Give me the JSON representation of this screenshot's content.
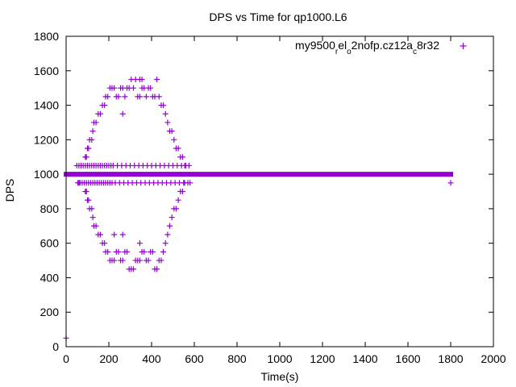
{
  "chart_data": {
    "type": "scatter",
    "title": "DPS vs Time for qp1000.L6",
    "xlabel": "Time(s)",
    "ylabel": "DPS",
    "xlim": [
      0,
      2000
    ],
    "ylim": [
      0,
      1800
    ],
    "xticks": [
      0,
      200,
      400,
      600,
      800,
      1000,
      1200,
      1400,
      1600,
      1800,
      2000
    ],
    "yticks": [
      0,
      200,
      400,
      600,
      800,
      1000,
      1200,
      1400,
      1600,
      1800
    ],
    "legend_position": "top-right",
    "grid": false,
    "series": [
      {
        "legend_parts": [
          {
            "text": "my9500",
            "sub": false
          },
          {
            "text": "r",
            "sub": true
          },
          {
            "text": "el",
            "sub": false
          },
          {
            "text": "o",
            "sub": true
          },
          {
            "text": "2nofp.cz12a",
            "sub": false
          },
          {
            "text": "c",
            "sub": true
          },
          {
            "text": "8r32",
            "sub": false
          }
        ],
        "color": "#9400d3",
        "marker": "plus",
        "baseline": {
          "y": 1000,
          "x_from": 0,
          "x_to": 1800
        },
        "points": [
          [
            0,
            50
          ],
          [
            1800,
            950
          ],
          [
            50,
            1050
          ],
          [
            55,
            950
          ],
          [
            60,
            1050
          ],
          [
            65,
            950
          ],
          [
            70,
            1050
          ],
          [
            75,
            950
          ],
          [
            80,
            1050
          ],
          [
            85,
            950
          ],
          [
            90,
            1050
          ],
          [
            60,
            950
          ],
          [
            70,
            1050
          ],
          [
            95,
            950
          ],
          [
            100,
            1050
          ],
          [
            105,
            950
          ],
          [
            110,
            1050
          ],
          [
            115,
            950
          ],
          [
            120,
            1050
          ],
          [
            125,
            950
          ],
          [
            130,
            1050
          ],
          [
            135,
            950
          ],
          [
            140,
            1050
          ],
          [
            145,
            950
          ],
          [
            150,
            1050
          ],
          [
            155,
            950
          ],
          [
            160,
            1050
          ],
          [
            165,
            950
          ],
          [
            170,
            1050
          ],
          [
            175,
            950
          ],
          [
            180,
            1050
          ],
          [
            185,
            950
          ],
          [
            190,
            1050
          ],
          [
            195,
            950
          ],
          [
            200,
            1050
          ],
          [
            205,
            950
          ],
          [
            210,
            1050
          ],
          [
            215,
            950
          ],
          [
            220,
            1050
          ],
          [
            230,
            950
          ],
          [
            240,
            1050
          ],
          [
            250,
            950
          ],
          [
            260,
            1050
          ],
          [
            270,
            950
          ],
          [
            280,
            1050
          ],
          [
            290,
            950
          ],
          [
            300,
            1050
          ],
          [
            310,
            950
          ],
          [
            320,
            1050
          ],
          [
            330,
            950
          ],
          [
            340,
            1050
          ],
          [
            350,
            950
          ],
          [
            360,
            1050
          ],
          [
            370,
            950
          ],
          [
            380,
            1050
          ],
          [
            390,
            950
          ],
          [
            400,
            1050
          ],
          [
            410,
            950
          ],
          [
            420,
            1050
          ],
          [
            430,
            950
          ],
          [
            440,
            1050
          ],
          [
            450,
            950
          ],
          [
            460,
            1050
          ],
          [
            470,
            950
          ],
          [
            480,
            1050
          ],
          [
            490,
            950
          ],
          [
            500,
            1050
          ],
          [
            510,
            950
          ],
          [
            520,
            1050
          ],
          [
            530,
            950
          ],
          [
            540,
            1050
          ],
          [
            550,
            950
          ],
          [
            560,
            1050
          ],
          [
            570,
            950
          ],
          [
            575,
            1050
          ],
          [
            580,
            950
          ],
          [
            90,
            1100
          ],
          [
            95,
            1100
          ],
          [
            100,
            1150
          ],
          [
            105,
            1150
          ],
          [
            110,
            1200
          ],
          [
            120,
            1200
          ],
          [
            125,
            1250
          ],
          [
            130,
            1300
          ],
          [
            140,
            1300
          ],
          [
            150,
            1350
          ],
          [
            160,
            1350
          ],
          [
            170,
            1400
          ],
          [
            180,
            1400
          ],
          [
            185,
            1450
          ],
          [
            195,
            1450
          ],
          [
            205,
            1500
          ],
          [
            215,
            1500
          ],
          [
            225,
            1500
          ],
          [
            235,
            1450
          ],
          [
            245,
            1450
          ],
          [
            255,
            1500
          ],
          [
            265,
            1500
          ],
          [
            275,
            1450
          ],
          [
            285,
            1500
          ],
          [
            295,
            1500
          ],
          [
            305,
            1550
          ],
          [
            315,
            1500
          ],
          [
            325,
            1550
          ],
          [
            335,
            1450
          ],
          [
            345,
            1450
          ],
          [
            355,
            1500
          ],
          [
            365,
            1500
          ],
          [
            375,
            1450
          ],
          [
            385,
            1500
          ],
          [
            395,
            1500
          ],
          [
            405,
            1450
          ],
          [
            415,
            1450
          ],
          [
            425,
            1550
          ],
          [
            435,
            1450
          ],
          [
            445,
            1400
          ],
          [
            455,
            1400
          ],
          [
            465,
            1350
          ],
          [
            475,
            1300
          ],
          [
            485,
            1250
          ],
          [
            495,
            1250
          ],
          [
            505,
            1200
          ],
          [
            515,
            1150
          ],
          [
            525,
            1150
          ],
          [
            535,
            1100
          ],
          [
            545,
            1100
          ],
          [
            555,
            1050
          ],
          [
            265,
            1350
          ],
          [
            345,
            1550
          ],
          [
            355,
            1550
          ],
          [
            90,
            900
          ],
          [
            95,
            900
          ],
          [
            100,
            850
          ],
          [
            105,
            850
          ],
          [
            110,
            800
          ],
          [
            120,
            800
          ],
          [
            125,
            750
          ],
          [
            130,
            700
          ],
          [
            140,
            700
          ],
          [
            150,
            650
          ],
          [
            160,
            650
          ],
          [
            170,
            600
          ],
          [
            180,
            600
          ],
          [
            185,
            550
          ],
          [
            195,
            550
          ],
          [
            205,
            500
          ],
          [
            215,
            500
          ],
          [
            225,
            500
          ],
          [
            235,
            550
          ],
          [
            245,
            550
          ],
          [
            255,
            500
          ],
          [
            265,
            500
          ],
          [
            275,
            550
          ],
          [
            285,
            550
          ],
          [
            295,
            450
          ],
          [
            305,
            450
          ],
          [
            315,
            450
          ],
          [
            325,
            500
          ],
          [
            335,
            500
          ],
          [
            345,
            500
          ],
          [
            355,
            550
          ],
          [
            365,
            550
          ],
          [
            375,
            500
          ],
          [
            385,
            500
          ],
          [
            395,
            550
          ],
          [
            405,
            550
          ],
          [
            415,
            450
          ],
          [
            425,
            450
          ],
          [
            435,
            500
          ],
          [
            445,
            500
          ],
          [
            455,
            550
          ],
          [
            465,
            600
          ],
          [
            475,
            650
          ],
          [
            485,
            700
          ],
          [
            495,
            750
          ],
          [
            505,
            800
          ],
          [
            515,
            800
          ],
          [
            525,
            850
          ],
          [
            535,
            900
          ],
          [
            545,
            900
          ],
          [
            555,
            950
          ],
          [
            225,
            650
          ],
          [
            265,
            650
          ],
          [
            345,
            600
          ]
        ]
      }
    ]
  }
}
